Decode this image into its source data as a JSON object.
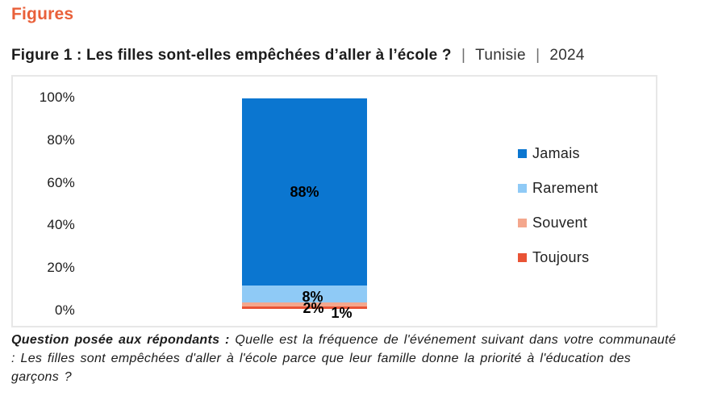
{
  "page": {
    "heading": "Figures",
    "figure_title": {
      "label": "Figure 1 : Les filles sont-elles empêchées d’aller à l’école ?",
      "separator": "|",
      "country": "Tunisie",
      "year": "2024"
    },
    "footnote": {
      "lead": "Question posée aux répondants :",
      "body": " Quelle est la fréquence de l'événement suivant dans votre communauté : Les filles sont empêchées d'aller à l'école parce que leur famille donne la priorité à l'éducation des garçons ?"
    }
  },
  "colors": {
    "heading_accent": "#E9603A",
    "panel_border": "#E7E7E7",
    "title_text": "#1C1C1C",
    "label_text": "#000000"
  },
  "chart_data": {
    "type": "bar",
    "stacked": true,
    "categories": [
      ""
    ],
    "series": [
      {
        "name": "Jamais",
        "color": "#0B76D0",
        "values": [
          88
        ],
        "label": "88%"
      },
      {
        "name": "Rarement",
        "color": "#8FCAF6",
        "values": [
          8
        ],
        "label": "8%"
      },
      {
        "name": "Souvent",
        "color": "#F4A78D",
        "values": [
          2
        ],
        "label": "2%"
      },
      {
        "name": "Toujours",
        "color": "#E95335",
        "values": [
          1
        ],
        "label": "1%"
      }
    ],
    "title": "",
    "xlabel": "",
    "ylabel": "",
    "ylim": [
      0,
      100
    ],
    "yticks": [
      "0%",
      "20%",
      "40%",
      "60%",
      "80%",
      "100%"
    ],
    "grid": false,
    "legend_position": "right"
  }
}
